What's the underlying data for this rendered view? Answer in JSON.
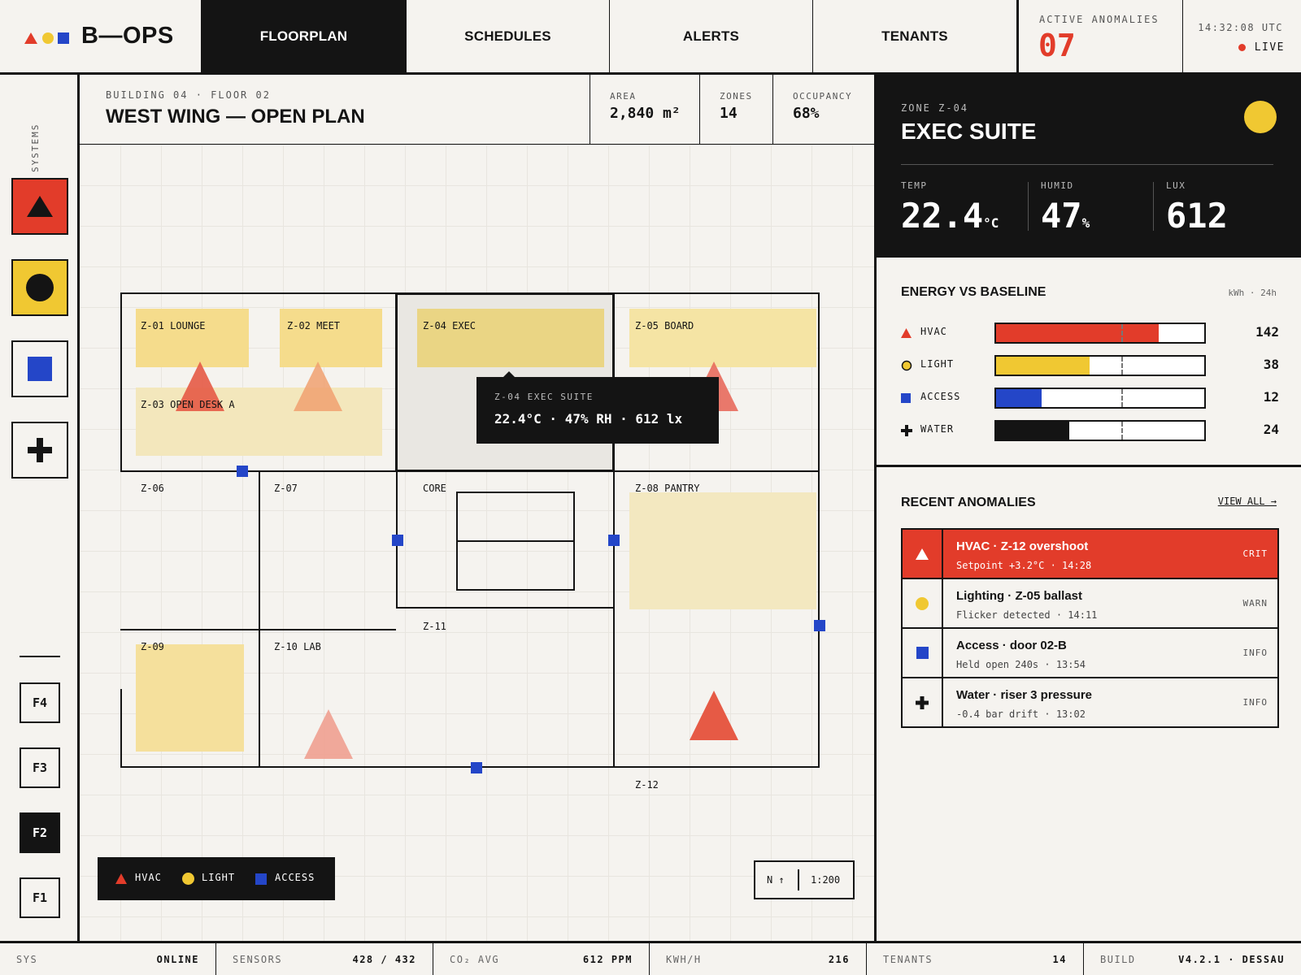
{
  "app": {
    "brand": "B—OPS"
  },
  "nav": {
    "tabs": [
      {
        "label": "FLOORPLAN",
        "active": true
      },
      {
        "label": "SCHEDULES",
        "active": false
      },
      {
        "label": "ALERTS",
        "active": false
      },
      {
        "label": "TENANTS",
        "active": false
      }
    ]
  },
  "anomalies_counter": {
    "label": "ACTIVE ANOMALIES",
    "value": "07"
  },
  "clock": {
    "time": "14:32:08 UTC",
    "status": "LIVE"
  },
  "rail": {
    "label": "SYSTEMS",
    "systems": [
      {
        "name": "hvac",
        "icon": "triangle-icon",
        "color": "#e23c2a"
      },
      {
        "name": "light",
        "icon": "circle-icon",
        "color": "#f0c832"
      },
      {
        "name": "access",
        "icon": "square-icon",
        "color": "#2446c8"
      },
      {
        "name": "water",
        "icon": "plus-icon",
        "color": "#141414"
      }
    ],
    "floors": [
      {
        "label": "F4",
        "active": false
      },
      {
        "label": "F3",
        "active": false
      },
      {
        "label": "F2",
        "active": true
      },
      {
        "label": "F1",
        "active": false
      }
    ]
  },
  "header": {
    "breadcrumb": "BUILDING 04 · FLOOR 02",
    "title": "WEST WING — OPEN PLAN",
    "stats": [
      {
        "label": "AREA",
        "value": "2,840 m²"
      },
      {
        "label": "ZONES",
        "value": "14"
      },
      {
        "label": "OCCUPANCY",
        "value": "68%"
      }
    ]
  },
  "map": {
    "zones": {
      "z01": "Z-01 LOUNGE",
      "z02": "Z-02 MEET",
      "z03": "Z-03 OPEN DESK A",
      "z04": "Z-04 EXEC",
      "z05": "Z-05 BOARD",
      "z06": "Z-06",
      "z07": "Z-07",
      "core": "CORE",
      "z08": "Z-08 PANTRY",
      "z09": "Z-09",
      "z10": "Z-10 LAB",
      "z11": "Z-11",
      "z12": "Z-12"
    },
    "tooltip": {
      "title": "Z-04 EXEC SUITE",
      "value": "22.4°C · 47% RH · 612 lx"
    },
    "legend": [
      {
        "label": "HVAC",
        "icon": "triangle-icon"
      },
      {
        "label": "LIGHT",
        "icon": "circle-icon"
      },
      {
        "label": "ACCESS",
        "icon": "square-icon"
      }
    ],
    "compass": "N ↑",
    "scale": "1:200"
  },
  "zone_card": {
    "eyebrow": "ZONE Z-04",
    "title": "EXEC SUITE",
    "status_color": "#f0c832",
    "metrics": [
      {
        "label": "TEMP",
        "value": "22.4",
        "unit": "°C"
      },
      {
        "label": "HUMID",
        "value": "47",
        "unit": "%"
      },
      {
        "label": "LUX",
        "value": "612",
        "unit": ""
      }
    ]
  },
  "energy": {
    "title": "ENERGY VS BASELINE",
    "unit": "kWh · 24h",
    "rows": [
      {
        "name": "HVAC",
        "icon": "triangle-icon",
        "value": "142",
        "fill": 0.78,
        "baseline": 0.6,
        "color": "#e23c2a"
      },
      {
        "name": "LIGHT",
        "icon": "circle-icon",
        "value": "38",
        "fill": 0.45,
        "baseline": 0.6,
        "color": "#f0c832"
      },
      {
        "name": "ACCESS",
        "icon": "square-icon",
        "value": "12",
        "fill": 0.22,
        "baseline": 0.6,
        "color": "#2446c8"
      },
      {
        "name": "WATER",
        "icon": "plus-icon",
        "value": "24",
        "fill": 0.35,
        "baseline": 0.6,
        "color": "#141414"
      }
    ]
  },
  "recent": {
    "title": "RECENT ANOMALIES",
    "view_all": "VIEW ALL →",
    "items": [
      {
        "title": "HVAC · Z-12 overshoot",
        "sub": "Setpoint +3.2°C · 14:28",
        "severity": "CRIT",
        "icon": "triangle-icon"
      },
      {
        "title": "Lighting · Z-05 ballast",
        "sub": "Flicker detected · 14:11",
        "severity": "WARN",
        "icon": "circle-icon"
      },
      {
        "title": "Access · door 02-B",
        "sub": "Held open 240s · 13:54",
        "severity": "INFO",
        "icon": "square-icon"
      },
      {
        "title": "Water · riser 3 pressure",
        "sub": "-0.4 bar drift · 13:02",
        "severity": "INFO",
        "icon": "plus-icon"
      }
    ]
  },
  "footer": [
    {
      "key": "SYS",
      "value": "ONLINE"
    },
    {
      "key": "SENSORS",
      "value": "428 / 432"
    },
    {
      "key": "CO₂ AVG",
      "value": "612 PPM"
    },
    {
      "key": "KWH/H",
      "value": "216"
    },
    {
      "key": "TENANTS",
      "value": "14"
    },
    {
      "key": "BUILD",
      "value": "V4.2.1 · DESSAU"
    }
  ]
}
